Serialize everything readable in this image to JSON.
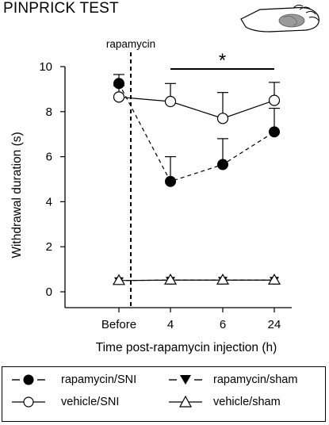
{
  "title": "PINPRICK TEST",
  "chart_data": {
    "type": "line",
    "title": "PINPRICK TEST",
    "xlabel": "Time post-rapamycin injection (h)",
    "ylabel": "Withdrawal duration (s)",
    "categories": [
      "Before",
      "4",
      "6",
      "24"
    ],
    "ylim": [
      0,
      10
    ],
    "yticks": [
      0,
      2,
      4,
      6,
      8,
      10
    ],
    "grid": false,
    "legend_position": "bottom",
    "annotations": [
      {
        "text": "rapamycin",
        "type": "vertical-dashed-line",
        "between": [
          "Before",
          "4"
        ]
      },
      {
        "text": "*",
        "type": "significance-bar",
        "from": "4",
        "to": "24"
      }
    ],
    "series": [
      {
        "name": "rapamycin/SNI",
        "marker": "filled-circle",
        "line": "dashed",
        "values": [
          9.25,
          4.9,
          5.65,
          7.1
        ],
        "error_up": [
          0.4,
          1.1,
          1.15,
          1.05
        ]
      },
      {
        "name": "vehicle/SNI",
        "marker": "open-circle",
        "line": "solid",
        "values": [
          8.65,
          8.45,
          7.7,
          8.5
        ],
        "error_up": [
          0.5,
          0.8,
          1.15,
          0.8
        ]
      },
      {
        "name": "rapamycin/sham",
        "marker": "filled-triangle-down",
        "line": "dashed",
        "values": [
          0.5,
          0.52,
          0.52,
          0.52
        ],
        "error_up": [
          0,
          0,
          0,
          0
        ]
      },
      {
        "name": "vehicle/sham",
        "marker": "open-triangle-up",
        "line": "solid",
        "values": [
          0.5,
          0.52,
          0.52,
          0.52
        ],
        "error_up": [
          0,
          0,
          0,
          0
        ]
      }
    ]
  }
}
